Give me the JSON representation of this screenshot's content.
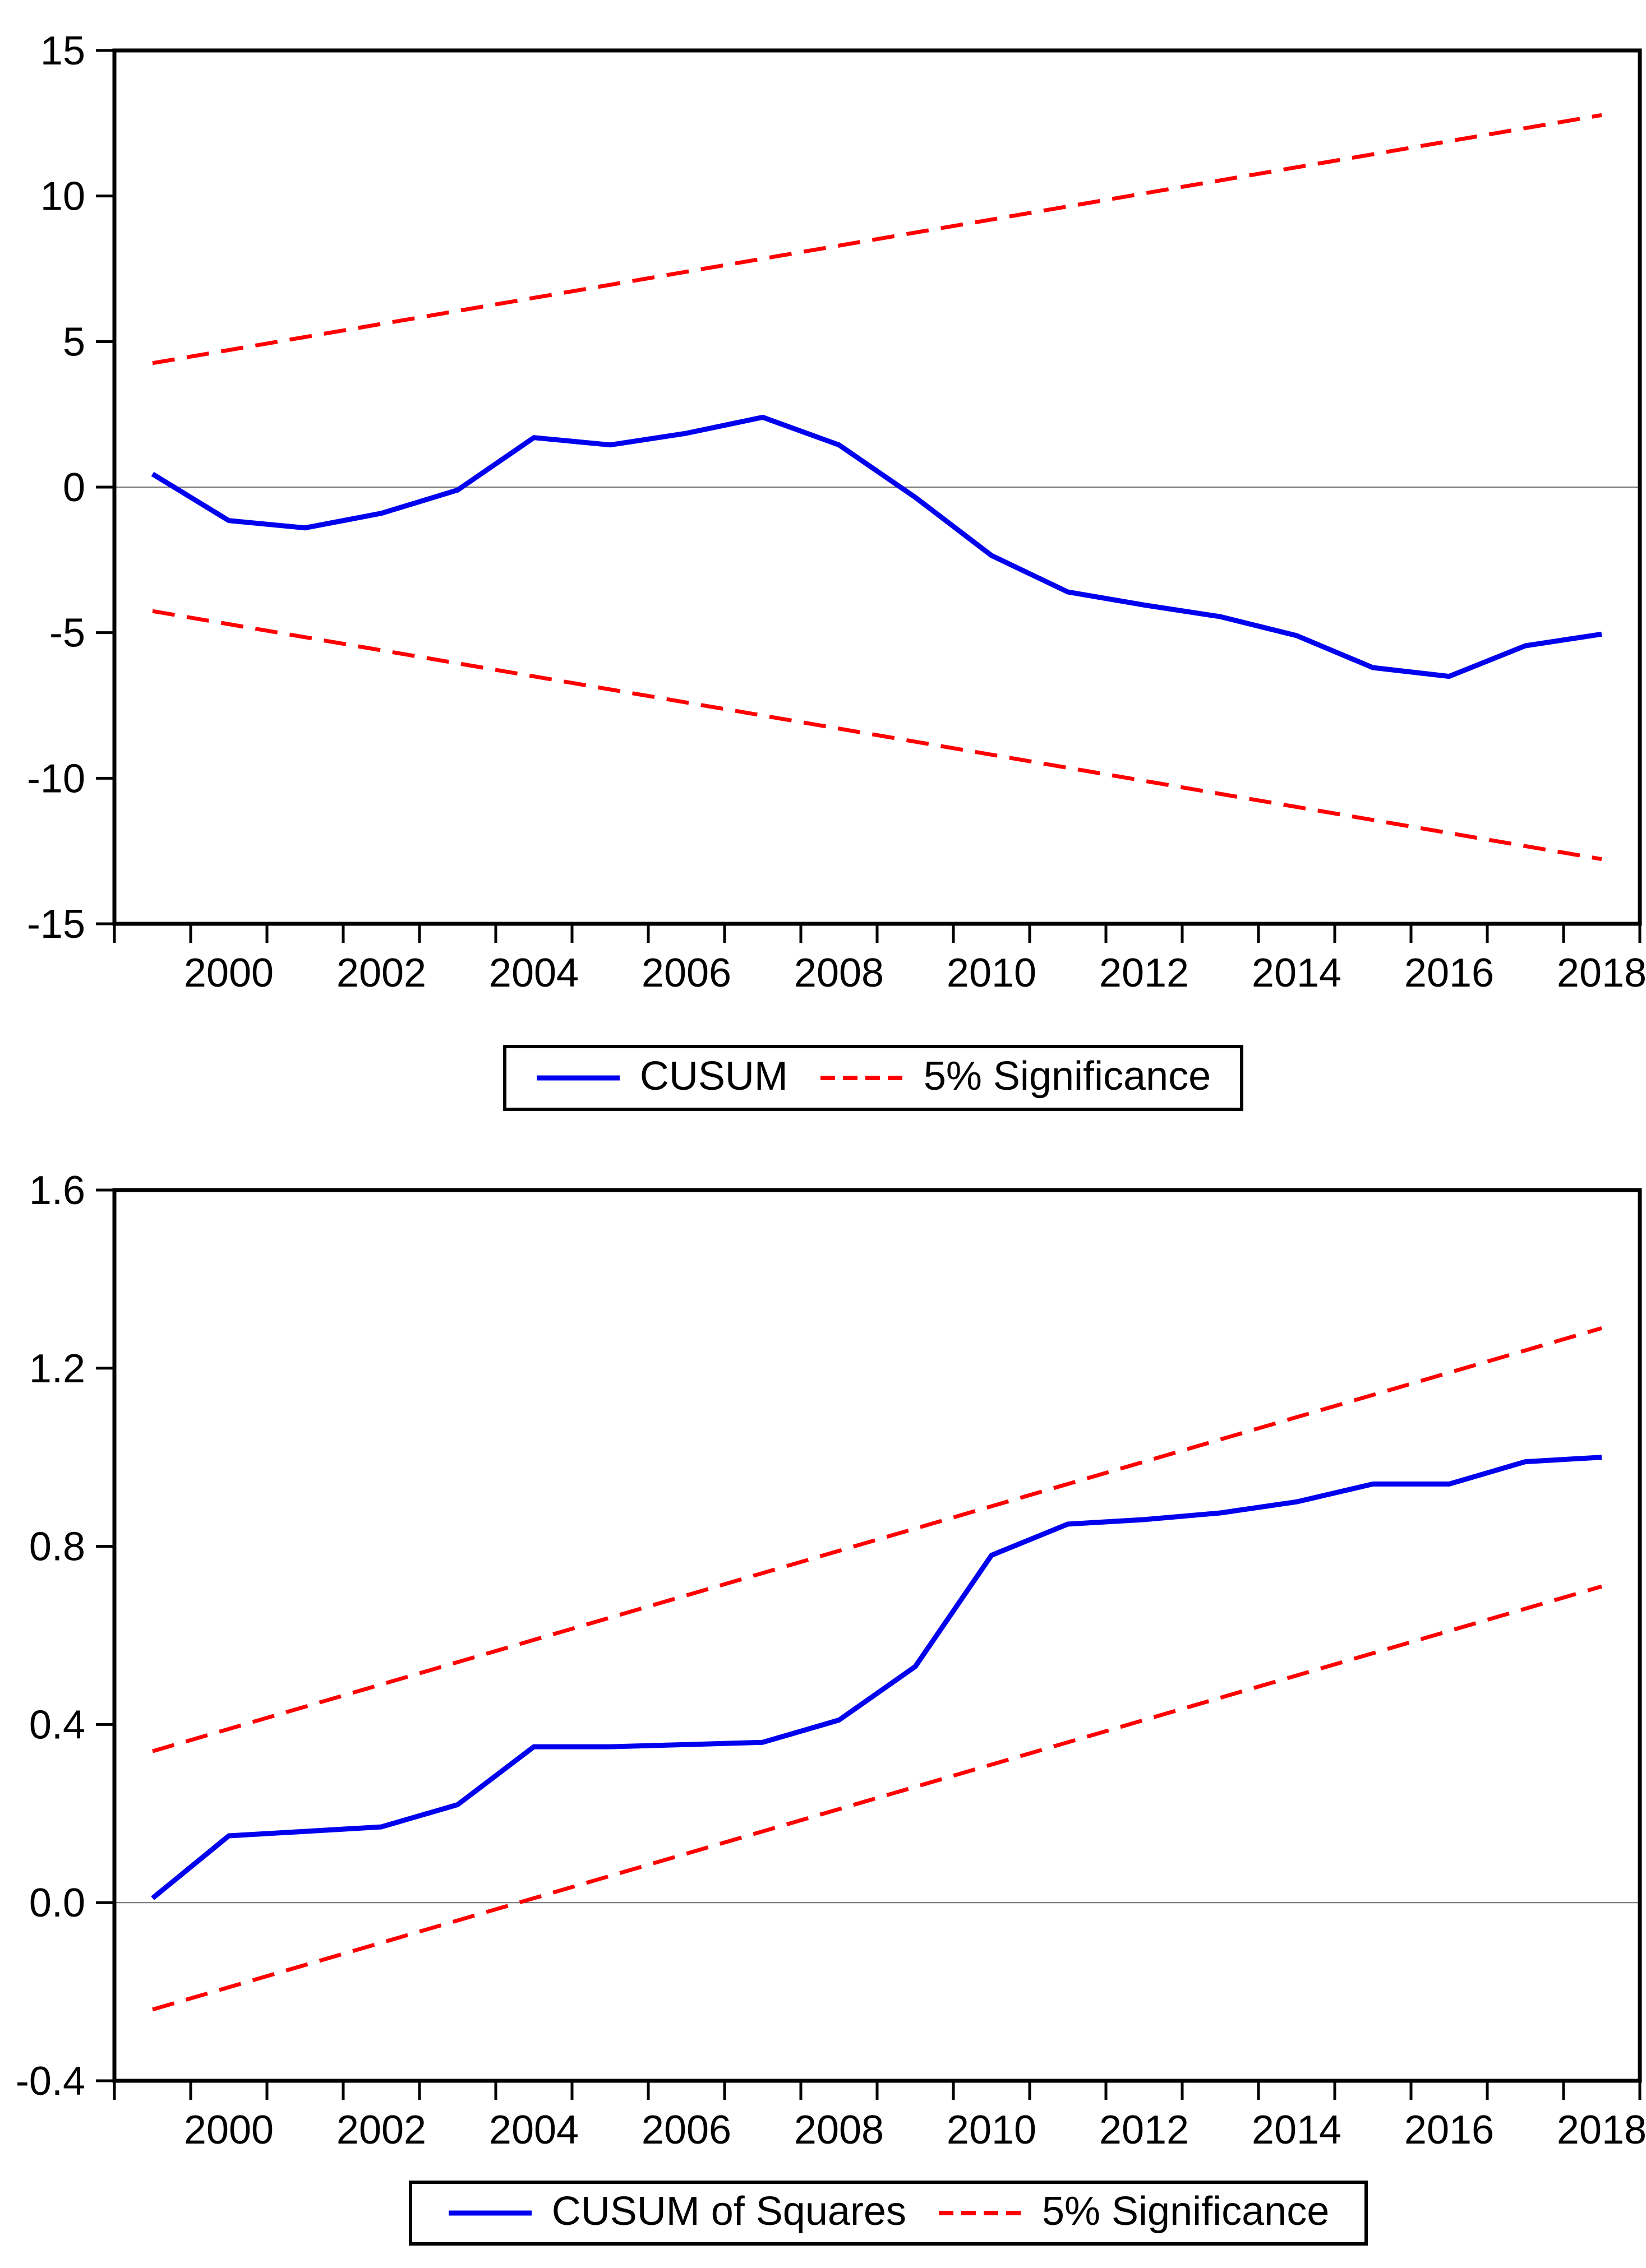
{
  "page_background": "#ffffff",
  "colors": {
    "series_line": "#0000EE",
    "significance_line": "#FF0000",
    "axis": "#000000",
    "zero_line": "#6e6e6e"
  },
  "chart_data": [
    {
      "type": "line",
      "title": "",
      "xlabel": "",
      "ylabel": "",
      "x": [
        1999,
        2000,
        2001,
        2002,
        2003,
        2004,
        2005,
        2006,
        2007,
        2008,
        2009,
        2010,
        2011,
        2012,
        2013,
        2014,
        2015,
        2016,
        2017,
        2018
      ],
      "series": [
        {
          "name": "CUSUM",
          "style": "solid",
          "color": "#0000EE",
          "values": [
            0.45,
            -1.15,
            -1.4,
            -0.9,
            -0.1,
            1.7,
            1.45,
            1.85,
            2.4,
            1.45,
            -0.35,
            -2.35,
            -3.6,
            -4.05,
            -4.45,
            -5.1,
            -6.2,
            -6.5,
            -5.45,
            -5.05
          ]
        },
        {
          "name": "5% Significance upper bound",
          "style": "dashed",
          "color": "#FF0000",
          "x": [
            1999,
            2018
          ],
          "values": [
            4.26,
            12.78
          ]
        },
        {
          "name": "5% Significance lower bound",
          "style": "dashed",
          "color": "#FF0000",
          "x": [
            1999,
            2018
          ],
          "values": [
            -4.26,
            -12.78
          ]
        }
      ],
      "axes": {
        "xlim": [
          1999,
          2019
        ],
        "ylim": [
          -15,
          15
        ],
        "yticks": [
          15,
          10,
          5,
          0,
          -5,
          -10,
          -15
        ],
        "ytick_labels": [
          "15",
          "10",
          "5",
          "0",
          "-5",
          "-10",
          "-15"
        ],
        "xticks": [
          1999,
          2000,
          2001,
          2002,
          2003,
          2004,
          2005,
          2006,
          2007,
          2008,
          2009,
          2010,
          2011,
          2012,
          2013,
          2014,
          2015,
          2016,
          2017,
          2018,
          2019
        ],
        "xtick_labels": [
          {
            "year": 2000,
            "label": "2000"
          },
          {
            "year": 2002,
            "label": "2002"
          },
          {
            "year": 2004,
            "label": "2004"
          },
          {
            "year": 2006,
            "label": "2006"
          },
          {
            "year": 2008,
            "label": "2008"
          },
          {
            "year": 2010,
            "label": "2010"
          },
          {
            "year": 2012,
            "label": "2012"
          },
          {
            "year": 2014,
            "label": "2014"
          },
          {
            "year": 2016,
            "label": "2016"
          },
          {
            "year": 2018,
            "label": "2018"
          }
        ],
        "zero_line": 0,
        "grid": false
      },
      "legend": [
        {
          "label": "CUSUM",
          "style": "solid",
          "color": "#0000EE"
        },
        {
          "label": "5% Significance",
          "style": "dashed",
          "color": "#FF0000"
        }
      ],
      "legend_position": "bottom-center"
    },
    {
      "type": "line",
      "title": "",
      "xlabel": "",
      "ylabel": "",
      "x": [
        1999,
        2000,
        2001,
        2002,
        2003,
        2004,
        2005,
        2006,
        2007,
        2008,
        2009,
        2010,
        2011,
        2012,
        2013,
        2014,
        2015,
        2016,
        2017,
        2018
      ],
      "series": [
        {
          "name": "CUSUM of Squares",
          "style": "solid",
          "color": "#0000EE",
          "values": [
            0.01,
            0.15,
            0.16,
            0.17,
            0.22,
            0.35,
            0.35,
            0.355,
            0.36,
            0.41,
            0.53,
            0.78,
            0.85,
            0.86,
            0.875,
            0.9,
            0.94,
            0.94,
            0.99,
            1.0
          ]
        },
        {
          "name": "5% Significance upper bound",
          "style": "dashed",
          "color": "#FF0000",
          "x": [
            1999,
            2018
          ],
          "values": [
            0.34,
            1.29
          ]
        },
        {
          "name": "5% Significance lower bound",
          "style": "dashed",
          "color": "#FF0000",
          "x": [
            1999,
            2018
          ],
          "values": [
            -0.24,
            0.71
          ]
        }
      ],
      "axes": {
        "xlim": [
          1999,
          2019
        ],
        "ylim": [
          -0.4,
          1.6
        ],
        "yticks": [
          1.6,
          1.2,
          0.8,
          0.4,
          0.0,
          -0.4
        ],
        "ytick_labels": [
          "1.6",
          "1.2",
          "0.8",
          "0.4",
          "0.0",
          "-0.4"
        ],
        "xticks": [
          1999,
          2000,
          2001,
          2002,
          2003,
          2004,
          2005,
          2006,
          2007,
          2008,
          2009,
          2010,
          2011,
          2012,
          2013,
          2014,
          2015,
          2016,
          2017,
          2018,
          2019
        ],
        "xtick_labels": [
          {
            "year": 2000,
            "label": "2000"
          },
          {
            "year": 2002,
            "label": "2002"
          },
          {
            "year": 2004,
            "label": "2004"
          },
          {
            "year": 2006,
            "label": "2006"
          },
          {
            "year": 2008,
            "label": "2008"
          },
          {
            "year": 2010,
            "label": "2010"
          },
          {
            "year": 2012,
            "label": "2012"
          },
          {
            "year": 2014,
            "label": "2014"
          },
          {
            "year": 2016,
            "label": "2016"
          },
          {
            "year": 2018,
            "label": "2018"
          }
        ],
        "zero_line": 0,
        "grid": false
      },
      "legend": [
        {
          "label": "CUSUM of Squares",
          "style": "solid",
          "color": "#0000EE"
        },
        {
          "label": "5% Significance",
          "style": "dashed",
          "color": "#FF0000"
        }
      ],
      "legend_position": "bottom-center"
    }
  ]
}
